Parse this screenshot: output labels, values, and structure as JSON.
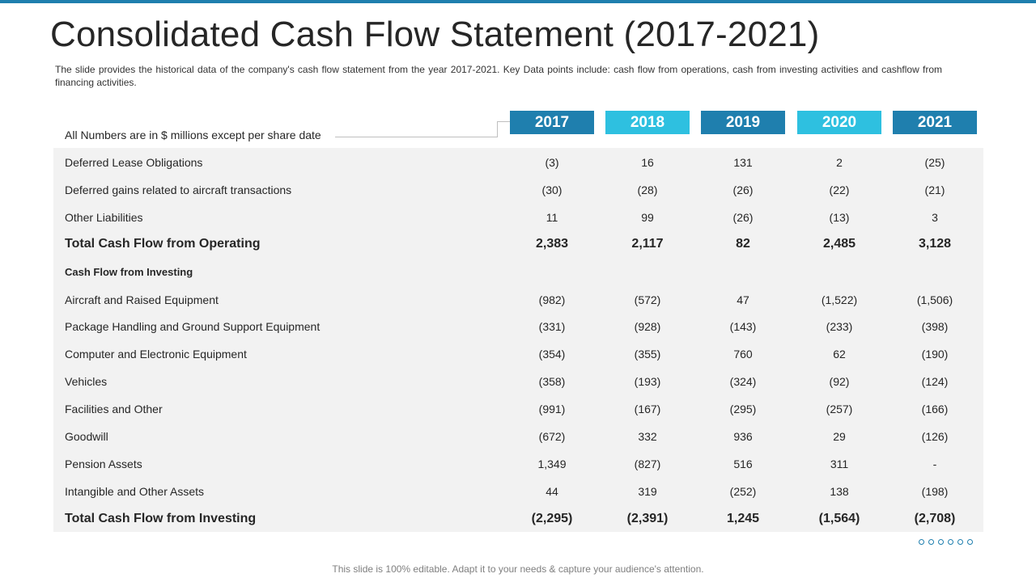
{
  "slide": {
    "title": "Consolidated Cash Flow Statement (2017-2021)",
    "description": "The slide provides the historical data of the company's cash flow statement from the year 2017-2021. Key Data points include: cash flow from operations, cash from investing activities and cashflow from financing activities.",
    "units_note": "All Numbers are in $ millions except per share date",
    "footer": "This slide is 100% editable. Adapt it to your needs & capture your audience's attention.",
    "accent_dark": "#1f7fae",
    "accent_light": "#2ec0e0"
  },
  "years": [
    "2017",
    "2018",
    "2019",
    "2020",
    "2021"
  ],
  "rows": [
    {
      "label": "Deferred Lease Obligations",
      "values": [
        "(3)",
        "16",
        "131",
        "2",
        "(25)"
      ]
    },
    {
      "label": "Deferred gains related to aircraft transactions",
      "values": [
        "(30)",
        "(28)",
        "(26)",
        "(22)",
        "(21)"
      ]
    },
    {
      "label": "Other Liabilities",
      "values": [
        "11",
        "99",
        "(26)",
        "(13)",
        "3"
      ]
    },
    {
      "label": "Total  Cash Flow from Operating",
      "values": [
        "2,383",
        "2,117",
        "82",
        "2,485",
        "3,128"
      ]
    },
    {
      "label": "Cash Flow from Investing",
      "values": [
        "",
        "",
        "",
        "",
        ""
      ]
    },
    {
      "label": "Aircraft and Raised Equipment",
      "values": [
        "(982)",
        "(572)",
        "47",
        "(1,522)",
        "(1,506)"
      ]
    },
    {
      "label": "Package Handling and Ground Support Equipment",
      "values": [
        "(331)",
        "(928)",
        "(143)",
        "(233)",
        "(398)"
      ]
    },
    {
      "label": "Computer and Electronic Equipment",
      "values": [
        "(354)",
        "(355)",
        "760",
        "62",
        "(190)"
      ]
    },
    {
      "label": "Vehicles",
      "values": [
        "(358)",
        "(193)",
        "(324)",
        "(92)",
        "(124)"
      ]
    },
    {
      "label": "Facilities and Other",
      "values": [
        "(991)",
        "(167)",
        "(295)",
        "(257)",
        "(166)"
      ]
    },
    {
      "label": "Goodwill",
      "values": [
        "(672)",
        "332",
        "936",
        "29",
        "(126)"
      ]
    },
    {
      "label": "Pension Assets",
      "values": [
        "1,349",
        "(827)",
        "516",
        "311",
        "-"
      ]
    },
    {
      "label": "Intangible and Other Assets",
      "values": [
        "44",
        "319",
        "(252)",
        "138",
        "(198)"
      ]
    },
    {
      "label": "Total Cash Flow from Investing",
      "values": [
        "(2,295)",
        "(2,391)",
        "1,245",
        "(1,564)",
        "(2,708)"
      ]
    }
  ]
}
